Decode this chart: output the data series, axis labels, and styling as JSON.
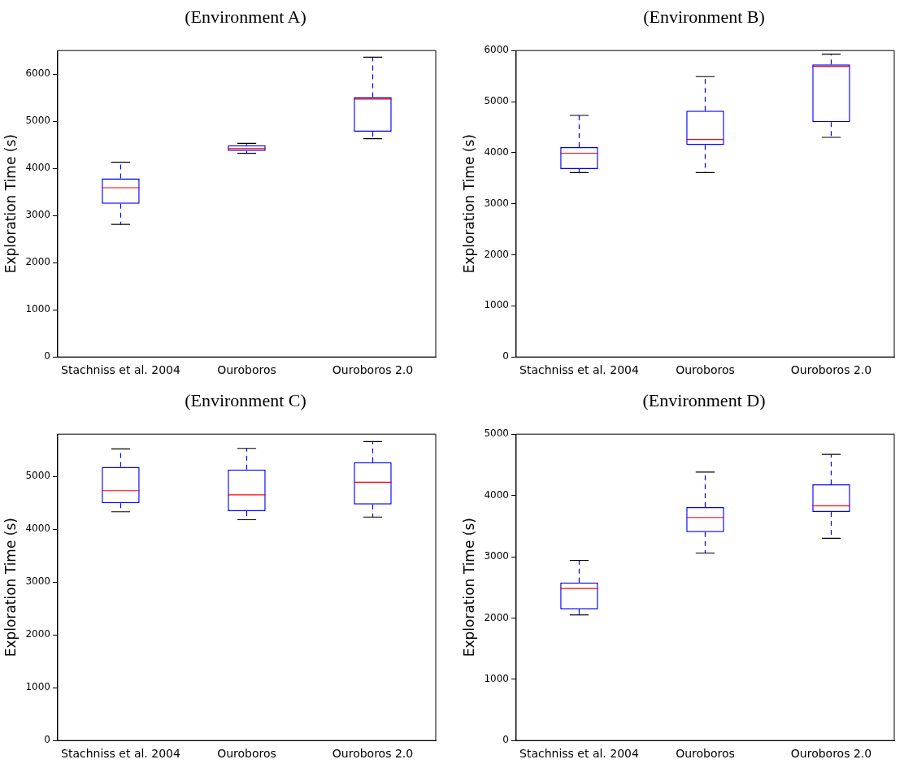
{
  "chart_data": [
    {
      "type": "box",
      "title": "(Environment A)",
      "ylabel": "Exploration Time (s)",
      "categories": [
        "Stachniss et al. 2004",
        "Ouroboros",
        "Ouroboros 2.0"
      ],
      "color": "#0000ff",
      "ylim": [
        0,
        6500
      ],
      "yticks": [
        0,
        1000,
        2000,
        3000,
        4000,
        5000,
        6000
      ],
      "grid": false,
      "legend": false,
      "boxes": [
        {
          "low": 2810,
          "q1": 3250,
          "median": 3590,
          "q3": 3790,
          "high": 4130
        },
        {
          "low": 4320,
          "q1": 4370,
          "median": 4420,
          "q3": 4490,
          "high": 4530
        },
        {
          "low": 4630,
          "q1": 4780,
          "median": 5470,
          "q3": 5510,
          "high": 6360
        }
      ]
    },
    {
      "type": "box",
      "title": "(Environment B)",
      "ylabel": "Exploration Time (s)",
      "categories": [
        "Stachniss et al. 2004",
        "Ouroboros",
        "Ouroboros 2.0"
      ],
      "color": "#0000ff",
      "ylim": [
        0,
        6000
      ],
      "yticks": [
        0,
        1000,
        2000,
        3000,
        4000,
        5000,
        6000
      ],
      "grid": false,
      "legend": false,
      "boxes": [
        {
          "low": 3610,
          "q1": 3680,
          "median": 3990,
          "q3": 4110,
          "high": 4730
        },
        {
          "low": 3610,
          "q1": 4150,
          "median": 4260,
          "q3": 4820,
          "high": 5490
        },
        {
          "low": 4300,
          "q1": 4600,
          "median": 5690,
          "q3": 5730,
          "high": 5930
        }
      ]
    },
    {
      "type": "box",
      "title": "(Environment C)",
      "ylabel": "Exploration Time (s)",
      "categories": [
        "Stachniss et al. 2004",
        "Ouroboros",
        "Ouroboros 2.0"
      ],
      "color": "#0000ff",
      "ylim": [
        0,
        5800
      ],
      "yticks": [
        0,
        1000,
        2000,
        3000,
        4000,
        5000
      ],
      "grid": false,
      "legend": false,
      "boxes": [
        {
          "low": 4330,
          "q1": 4490,
          "median": 4730,
          "q3": 5180,
          "high": 5520
        },
        {
          "low": 4180,
          "q1": 4340,
          "median": 4650,
          "q3": 5130,
          "high": 5530
        },
        {
          "low": 4230,
          "q1": 4470,
          "median": 4890,
          "q3": 5270,
          "high": 5660
        }
      ]
    },
    {
      "type": "box",
      "title": "(Environment D)",
      "ylabel": "Exploration Time (s)",
      "categories": [
        "Stachniss et al. 2004",
        "Ouroboros",
        "Ouroboros 2.0"
      ],
      "color": "#0000ff",
      "ylim": [
        0,
        5000
      ],
      "yticks": [
        0,
        1000,
        2000,
        3000,
        4000,
        5000
      ],
      "grid": false,
      "legend": false,
      "boxes": [
        {
          "low": 2050,
          "q1": 2140,
          "median": 2480,
          "q3": 2580,
          "high": 2940
        },
        {
          "low": 3060,
          "q1": 3400,
          "median": 3640,
          "q3": 3810,
          "high": 4380
        },
        {
          "low": 3300,
          "q1": 3730,
          "median": 3830,
          "q3": 4180,
          "high": 4670
        }
      ]
    }
  ]
}
